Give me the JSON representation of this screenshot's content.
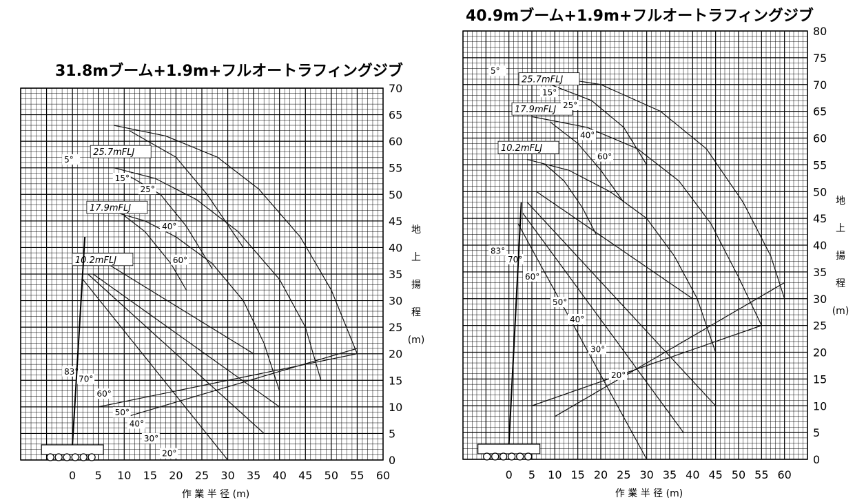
{
  "chart_data": [
    {
      "type": "line",
      "title": "31.8mブーム+1.9m+フルオートラフィングジブ",
      "xlabel": "作 業 半 径 (m)",
      "ylabel": [
        "地",
        "上",
        "揚",
        "程",
        "(m)"
      ],
      "xlim": [
        -10,
        60
      ],
      "ylim": [
        0,
        70
      ],
      "x_ticks": [
        "0",
        "5",
        "10",
        "15",
        "20",
        "25",
        "30",
        "35",
        "40",
        "45",
        "50",
        "55",
        "60"
      ],
      "y_ticks": [
        "0",
        "5",
        "10",
        "15",
        "20",
        "25",
        "30",
        "35",
        "40",
        "45",
        "50",
        "55",
        "60",
        "65",
        "70"
      ],
      "grid": true,
      "annotations": [
        "25.7mFLJ",
        "17.9mFLJ",
        "10.2mFLJ",
        "5°",
        "15°",
        "25°",
        "40°",
        "60°",
        "83°",
        "70°",
        "60°",
        "50°",
        "40°",
        "30°",
        "20°"
      ],
      "series": [
        {
          "x": [
            8,
            18,
            28,
            36,
            44,
            50,
            55
          ],
          "y": [
            63,
            61,
            57,
            51,
            42,
            32,
            20
          ]
        },
        {
          "x": [
            8,
            16,
            24,
            32,
            40,
            45,
            48
          ],
          "y": [
            55,
            53,
            49,
            43,
            34,
            25,
            15
          ]
        },
        {
          "x": [
            7,
            14,
            20,
            27,
            33,
            37,
            40
          ],
          "y": [
            47,
            45,
            42,
            37,
            30,
            22,
            13
          ]
        },
        {
          "x": [
            11,
            20,
            26,
            33
          ],
          "y": [
            62,
            57,
            50,
            40
          ]
        },
        {
          "x": [
            10,
            17,
            22,
            27
          ],
          "y": [
            54,
            50,
            44,
            36
          ]
        },
        {
          "x": [
            10,
            14,
            19,
            22
          ],
          "y": [
            46,
            43,
            37,
            32
          ]
        },
        {
          "x": [
            2,
            30
          ],
          "y": [
            34,
            0
          ]
        },
        {
          "x": [
            3,
            37
          ],
          "y": [
            35,
            5
          ]
        },
        {
          "x": [
            4,
            40
          ],
          "y": [
            35,
            10
          ]
        },
        {
          "x": [
            5,
            35
          ],
          "y": [
            38,
            20
          ]
        },
        {
          "x": [
            10,
            55
          ],
          "y": [
            8,
            21
          ]
        },
        {
          "x": [
            5,
            55
          ],
          "y": [
            10,
            20
          ]
        }
      ]
    },
    {
      "type": "line",
      "title": "40.9mブーム+1.9m+フルオートラフィングジブ",
      "xlabel": "作 業 半 径 (m)",
      "ylabel": [
        "地",
        "上",
        "揚",
        "程",
        "(m)"
      ],
      "xlim": [
        -10,
        65
      ],
      "ylim": [
        0,
        80
      ],
      "x_ticks": [
        "0",
        "5",
        "10",
        "15",
        "20",
        "25",
        "30",
        "35",
        "40",
        "45",
        "50",
        "55",
        "60"
      ],
      "y_ticks": [
        "0",
        "5",
        "10",
        "15",
        "20",
        "25",
        "30",
        "35",
        "40",
        "45",
        "50",
        "55",
        "60",
        "65",
        "70",
        "75",
        "80"
      ],
      "grid": true,
      "annotations": [
        "25.7mFLJ",
        "17.9mFLJ",
        "10.2mFLJ",
        "5°",
        "15°",
        "25°",
        "40°",
        "60°",
        "83°",
        "70°",
        "60°",
        "50°",
        "40°",
        "30°",
        "20°"
      ],
      "series": [
        {
          "x": [
            5,
            20,
            33,
            43,
            51,
            57,
            60
          ],
          "y": [
            72,
            70,
            65,
            58,
            48,
            38,
            30
          ]
        },
        {
          "x": [
            5,
            17,
            28,
            37,
            44,
            50,
            55
          ],
          "y": [
            64,
            62,
            58,
            52,
            44,
            34,
            25
          ]
        },
        {
          "x": [
            4,
            13,
            22,
            30,
            36,
            41,
            45
          ],
          "y": [
            56,
            54,
            50,
            45,
            38,
            30,
            20
          ]
        },
        {
          "x": [
            9,
            18,
            25,
            30
          ],
          "y": [
            70,
            67,
            62,
            55
          ]
        },
        {
          "x": [
            9,
            15,
            20,
            25
          ],
          "y": [
            63,
            59,
            54,
            48
          ]
        },
        {
          "x": [
            8,
            12,
            16,
            19
          ],
          "y": [
            55,
            52,
            47,
            42
          ]
        },
        {
          "x": [
            2,
            30
          ],
          "y": [
            44,
            0
          ]
        },
        {
          "x": [
            3,
            38
          ],
          "y": [
            46,
            5
          ]
        },
        {
          "x": [
            4,
            45
          ],
          "y": [
            48,
            10
          ]
        },
        {
          "x": [
            6,
            40
          ],
          "y": [
            50,
            30
          ]
        },
        {
          "x": [
            10,
            60
          ],
          "y": [
            8,
            33
          ]
        },
        {
          "x": [
            5,
            55
          ],
          "y": [
            10,
            25
          ]
        }
      ]
    }
  ]
}
